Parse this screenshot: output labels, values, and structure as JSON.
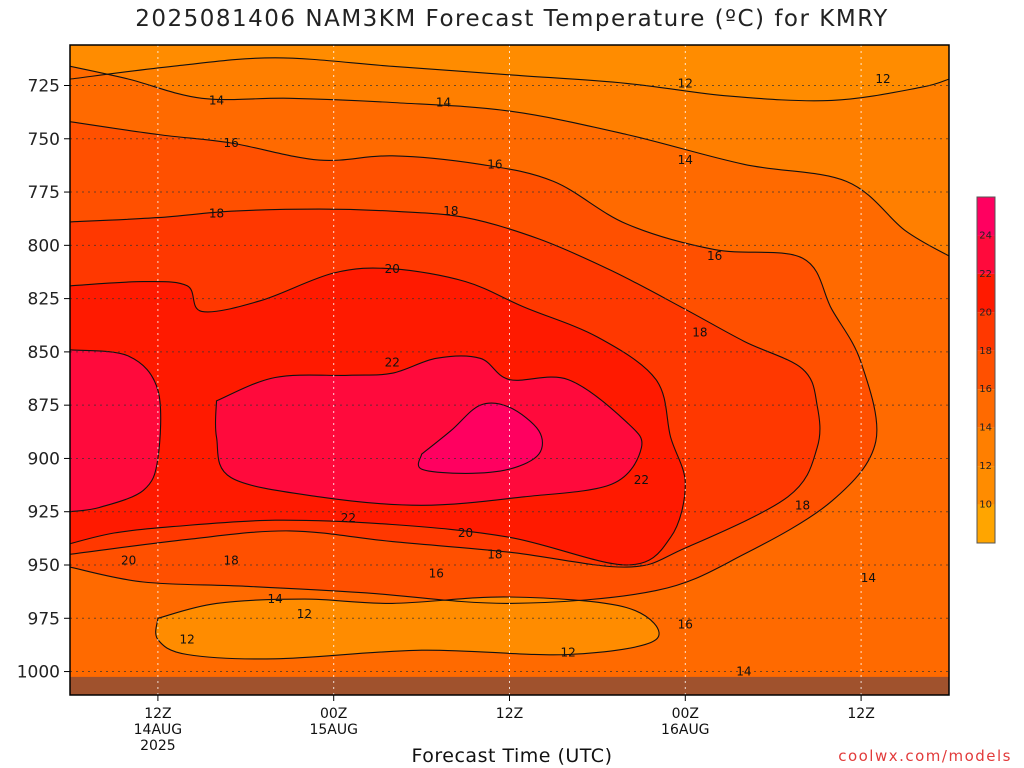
{
  "title": "2025081406 NAM3KM Forecast Temperature (ºC) for KMRY",
  "credit": "coolwx.com/models",
  "chart_data": {
    "type": "heatmap",
    "title": "2025081406 NAM3KM Forecast Temperature (ºC) for KMRY",
    "xlabel": "Forecast Time (UTC)",
    "ylabel": "",
    "x_range_hours": [
      0,
      60
    ],
    "y_range_hpa": [
      706,
      1011
    ],
    "y_ticks": [
      725,
      750,
      775,
      800,
      825,
      850,
      875,
      900,
      925,
      950,
      975,
      1000
    ],
    "x_ticks": [
      {
        "hour": 6,
        "lines": [
          "12Z",
          "14AUG",
          "2025"
        ]
      },
      {
        "hour": 18,
        "lines": [
          "00Z",
          "15AUG"
        ]
      },
      {
        "hour": 30,
        "lines": [
          "12Z"
        ]
      },
      {
        "hour": 42,
        "lines": [
          "00Z",
          "16AUG"
        ]
      },
      {
        "hour": 54,
        "lines": [
          "12Z"
        ]
      }
    ],
    "grid": true,
    "colorbar": {
      "placement": "right",
      "levels": [
        8,
        10,
        12,
        14,
        16,
        18,
        20,
        22,
        24,
        26
      ],
      "colors": [
        "#ffa500",
        "#ff8c00",
        "#ff7f00",
        "#ff6a00",
        "#ff5000",
        "#ff3800",
        "#ff1a00",
        "#ff0a3c",
        "#ff0060"
      ],
      "tick_labels": [
        10,
        12,
        14,
        16,
        18,
        20,
        22,
        24
      ]
    },
    "ground_color": "#a0522d",
    "contours": [
      {
        "value": 12,
        "label": "12",
        "points": [
          [
            0,
            722
          ],
          [
            7,
            716
          ],
          [
            14,
            712
          ],
          [
            22,
            716
          ],
          [
            30,
            720
          ],
          [
            38,
            724
          ],
          [
            45,
            730
          ],
          [
            52,
            732
          ],
          [
            58,
            726
          ],
          [
            60,
            722
          ]
        ]
      },
      {
        "value": 14,
        "label": "14",
        "points": [
          [
            0,
            716
          ],
          [
            4,
            722
          ],
          [
            9,
            731
          ],
          [
            15,
            731
          ],
          [
            22,
            733
          ],
          [
            30,
            737
          ],
          [
            38,
            748
          ],
          [
            46,
            762
          ],
          [
            53,
            770
          ],
          [
            57,
            793
          ],
          [
            60,
            805
          ]
        ]
      },
      {
        "value": 16,
        "label": "16",
        "points": [
          [
            0,
            742
          ],
          [
            6,
            748
          ],
          [
            11,
            752
          ],
          [
            17,
            760
          ],
          [
            22,
            758
          ],
          [
            28,
            762
          ],
          [
            33,
            770
          ],
          [
            38,
            790
          ],
          [
            44,
            802
          ],
          [
            50,
            806
          ],
          [
            52,
            830
          ],
          [
            54,
            855
          ],
          [
            55,
            892
          ],
          [
            52,
            920
          ],
          [
            46,
            945
          ],
          [
            40,
            962
          ],
          [
            30,
            968
          ],
          [
            20,
            963
          ],
          [
            12,
            960
          ],
          [
            5,
            958
          ],
          [
            0,
            951
          ]
        ]
      },
      {
        "value": 18,
        "label": "18",
        "points": [
          [
            0,
            789
          ],
          [
            6,
            787
          ],
          [
            11,
            784
          ],
          [
            17,
            783
          ],
          [
            22,
            784
          ],
          [
            27,
            787
          ],
          [
            32,
            797
          ],
          [
            37,
            812
          ],
          [
            42,
            830
          ],
          [
            46,
            845
          ],
          [
            50,
            858
          ],
          [
            51,
            875
          ],
          [
            51,
            895
          ],
          [
            49,
            918
          ],
          [
            42,
            942
          ],
          [
            38,
            951
          ],
          [
            30,
            944
          ],
          [
            22,
            939
          ],
          [
            15,
            934
          ],
          [
            8,
            938
          ],
          [
            0,
            945
          ]
        ]
      },
      {
        "value": 20,
        "label": "20",
        "points": [
          [
            0,
            819
          ],
          [
            5,
            817
          ],
          [
            8,
            819
          ],
          [
            9,
            831
          ],
          [
            13,
            826
          ],
          [
            18,
            813
          ],
          [
            22,
            811
          ],
          [
            27,
            817
          ],
          [
            31,
            829
          ],
          [
            36,
            843
          ],
          [
            40,
            863
          ],
          [
            41,
            890
          ],
          [
            42,
            912
          ],
          [
            41,
            937
          ],
          [
            38,
            950
          ],
          [
            30,
            937
          ],
          [
            22,
            931
          ],
          [
            14,
            929
          ],
          [
            7,
            932
          ],
          [
            3,
            935
          ],
          [
            0,
            940
          ]
        ]
      },
      {
        "value": 22,
        "label": "22a",
        "points": [
          [
            10,
            873
          ],
          [
            14,
            862
          ],
          [
            19,
            861
          ],
          [
            22,
            860
          ],
          [
            25,
            853
          ],
          [
            28,
            853
          ],
          [
            30,
            863
          ],
          [
            34,
            863
          ],
          [
            38,
            883
          ],
          [
            39,
            895
          ],
          [
            37,
            912
          ],
          [
            31,
            918
          ],
          [
            24,
            922
          ],
          [
            17,
            918
          ],
          [
            11,
            909
          ],
          [
            10,
            890
          ],
          [
            10,
            873
          ]
        ],
        "closed": true
      },
      {
        "value": 22,
        "label": "22b",
        "points": [
          [
            0,
            849
          ],
          [
            4,
            852
          ],
          [
            6,
            868
          ],
          [
            6,
            900
          ],
          [
            5,
            915
          ],
          [
            2,
            923
          ],
          [
            0,
            925
          ]
        ]
      },
      {
        "value": 24,
        "label": "24",
        "points": [
          [
            24,
            898
          ],
          [
            26,
            887
          ],
          [
            28,
            875
          ],
          [
            30,
            876
          ],
          [
            32,
            887
          ],
          [
            32,
            898
          ],
          [
            30,
            905
          ],
          [
            27,
            907
          ],
          [
            24,
            905
          ],
          [
            24,
            898
          ]
        ],
        "closed": true
      }
    ],
    "contour_labels": [
      {
        "text": "14",
        "x": 10,
        "y": 732
      },
      {
        "text": "14",
        "x": 25.5,
        "y": 733
      },
      {
        "text": "12",
        "x": 42,
        "y": 724
      },
      {
        "text": "12",
        "x": 55.5,
        "y": 722
      },
      {
        "text": "16",
        "x": 11,
        "y": 752
      },
      {
        "text": "16",
        "x": 29,
        "y": 762
      },
      {
        "text": "14",
        "x": 42,
        "y": 760
      },
      {
        "text": "18",
        "x": 10,
        "y": 785
      },
      {
        "text": "18",
        "x": 26,
        "y": 784
      },
      {
        "text": "16",
        "x": 44,
        "y": 805
      },
      {
        "text": "20",
        "x": 22,
        "y": 811
      },
      {
        "text": "18",
        "x": 43,
        "y": 841
      },
      {
        "text": "22",
        "x": 22,
        "y": 855
      },
      {
        "text": "22",
        "x": 39,
        "y": 910
      },
      {
        "text": "18",
        "x": 50,
        "y": 922
      },
      {
        "text": "22",
        "x": 19,
        "y": 928
      },
      {
        "text": "20",
        "x": 27,
        "y": 935
      },
      {
        "text": "18",
        "x": 29,
        "y": 945
      },
      {
        "text": "16",
        "x": 25,
        "y": 954
      },
      {
        "text": "20",
        "x": 4,
        "y": 948
      },
      {
        "text": "18",
        "x": 11,
        "y": 948
      },
      {
        "text": "14",
        "x": 54.5,
        "y": 956
      },
      {
        "text": "16",
        "x": 42,
        "y": 978
      },
      {
        "text": "12",
        "x": 16,
        "y": 973
      },
      {
        "text": "14",
        "x": 14,
        "y": 966
      },
      {
        "text": "12",
        "x": 8,
        "y": 985
      },
      {
        "text": "12",
        "x": 34,
        "y": 991
      },
      {
        "text": "14",
        "x": 46,
        "y": 1000
      }
    ]
  }
}
